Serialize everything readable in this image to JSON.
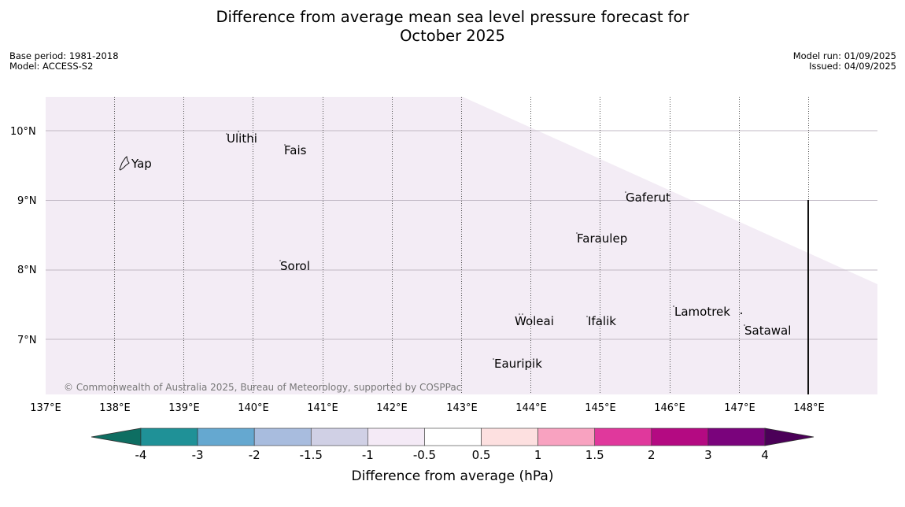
{
  "title_line1": "Difference from average mean sea level pressure forecast for",
  "title_line2": "October 2025",
  "meta": {
    "base_period": "Base period: 1981-2018",
    "model": "Model: ACCESS-S2",
    "model_run": "Model run: 01/09/2025",
    "issued": "Issued: 04/09/2025"
  },
  "copyright": "© Commonwealth of Australia 2025, Bureau of Meteorology, supported by COSPPac",
  "map": {
    "lat_labels": [
      "10°N",
      "9°N",
      "8°N",
      "7°N"
    ],
    "lon_labels": [
      "137°E",
      "138°E",
      "139°E",
      "140°E",
      "141°E",
      "142°E",
      "143°E",
      "144°E",
      "145°E",
      "146°E",
      "147°E",
      "148°E"
    ],
    "fill_color": "#f3ecf5",
    "places": [
      {
        "name": "Yap"
      },
      {
        "name": "Ulithi"
      },
      {
        "name": "Fais"
      },
      {
        "name": "Gaferut"
      },
      {
        "name": "Faraulep"
      },
      {
        "name": "Sorol"
      },
      {
        "name": "Lamotrek"
      },
      {
        "name": "Satawal"
      },
      {
        "name": "Woleai"
      },
      {
        "name": "Ifalik"
      },
      {
        "name": "Eauripik"
      }
    ]
  },
  "colorbar": {
    "title": "Difference from average (hPa)",
    "ticks": [
      "-4",
      "-3",
      "-2",
      "-1.5",
      "-1",
      "-0.5",
      "0.5",
      "1",
      "1.5",
      "2",
      "3",
      "4"
    ],
    "low_extend_color": "#0e6e62",
    "high_extend_color": "#4b0058",
    "colors": [
      "#1f9197",
      "#65a8d0",
      "#a8bcde",
      "#d0d0e5",
      "#f4eaf6",
      "#ffffff",
      "#fde0e0",
      "#f8a2c0",
      "#e0389c",
      "#b40a82",
      "#7a037c"
    ]
  }
}
